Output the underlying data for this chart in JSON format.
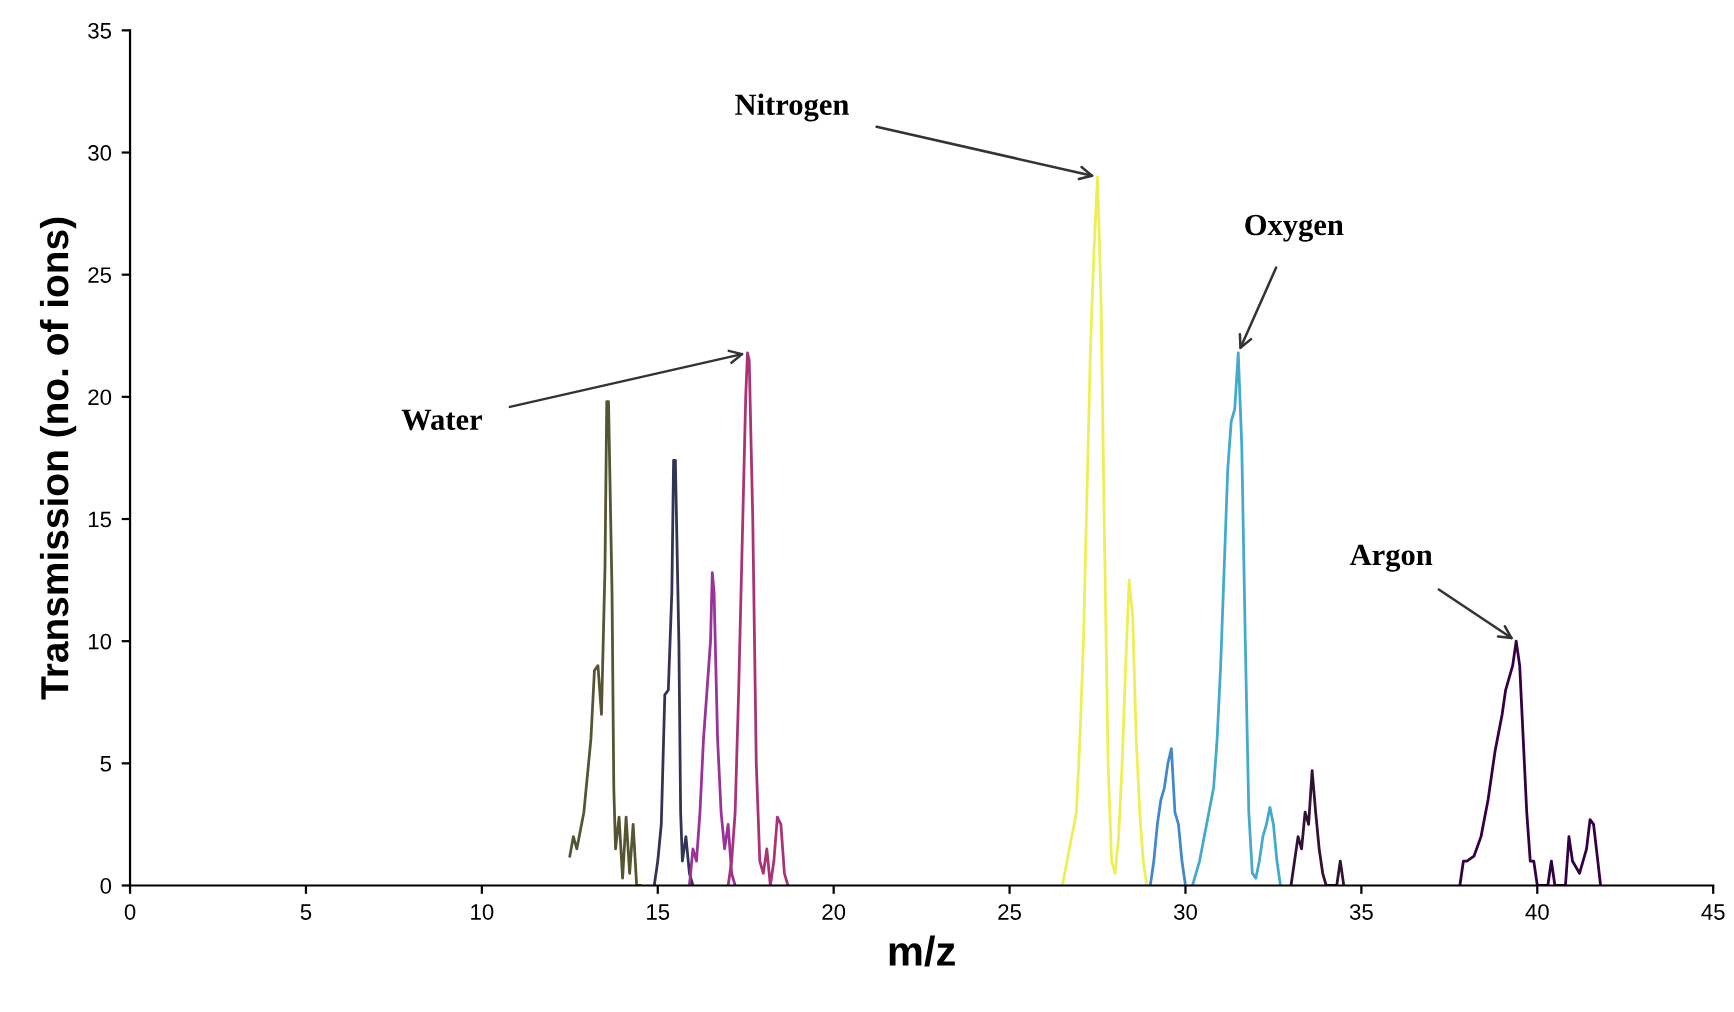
{
  "chart_data": {
    "type": "line",
    "xlabel": "m/z",
    "ylabel": "Transmission (no. of ions)",
    "xlim": [
      0,
      45
    ],
    "ylim": [
      0,
      35
    ],
    "xticks": [
      0,
      5,
      10,
      15,
      20,
      25,
      30,
      35,
      40,
      45
    ],
    "yticks": [
      0,
      5,
      10,
      15,
      20,
      25,
      30,
      35
    ],
    "grid": false,
    "legend": false,
    "marker": "none",
    "line_style": "solid",
    "annotations": [
      {
        "text": "Water",
        "x": 17.55,
        "y": 21.8
      },
      {
        "text": "Nitrogen",
        "x": 27.5,
        "y": 29
      },
      {
        "text": "Oxygen",
        "x": 31.5,
        "y": 21.8
      },
      {
        "text": "Argon",
        "x": 39.4,
        "y": 10
      }
    ],
    "series": [
      {
        "color": "#555533",
        "x": [
          12.5,
          12.6,
          12.7,
          12.9,
          13.1,
          13.2,
          13.3,
          13.4,
          13.5,
          13.55,
          13.6,
          13.7,
          13.75,
          13.8,
          13.9,
          14.0,
          14.1,
          14.2,
          14.3,
          14.4,
          14.5
        ],
        "values": [
          1.2,
          2,
          1.5,
          3,
          6,
          8.8,
          9,
          7,
          13,
          19.8,
          19.8,
          12,
          4,
          1.5,
          2.8,
          0.3,
          2.8,
          0.5,
          2.5,
          0,
          0
        ]
      },
      {
        "color": "#333355",
        "x": [
          14.9,
          15.0,
          15.1,
          15.2,
          15.3,
          15.4,
          15.45,
          15.5,
          15.6,
          15.65,
          15.7,
          15.8,
          15.9,
          16.0
        ],
        "values": [
          0,
          1,
          2.5,
          7.8,
          8,
          12,
          17.4,
          17.4,
          10,
          3,
          1,
          2,
          0.5,
          0
        ]
      },
      {
        "color": "#993399",
        "x": [
          15.9,
          16.0,
          16.1,
          16.2,
          16.3,
          16.4,
          16.5,
          16.55,
          16.6,
          16.7,
          16.8,
          16.9,
          17.0,
          17.1,
          17.2
        ],
        "values": [
          0,
          1.5,
          1,
          3,
          6,
          8,
          10,
          12.8,
          12,
          6,
          3,
          1.5,
          2.5,
          0.5,
          0
        ]
      },
      {
        "color": "#aa3377",
        "x": [
          17.0,
          17.1,
          17.2,
          17.3,
          17.4,
          17.5,
          17.55,
          17.6,
          17.7,
          17.8,
          17.9,
          18.0,
          18.1,
          18.2,
          18.3,
          18.4,
          18.5,
          18.6,
          18.7
        ],
        "values": [
          0,
          1,
          3,
          8,
          14,
          20,
          21.8,
          21.5,
          15,
          5,
          1,
          0.5,
          1.5,
          0,
          1,
          2.8,
          2.5,
          0.5,
          0
        ]
      },
      {
        "color": "#eeee55",
        "x": [
          26.5,
          26.7,
          26.9,
          27.0,
          27.1,
          27.2,
          27.3,
          27.4,
          27.5,
          27.6,
          27.7,
          27.8,
          27.9,
          28.0,
          28.1,
          28.2,
          28.3,
          28.4,
          28.5,
          28.6,
          28.7,
          28.8,
          28.9
        ],
        "values": [
          0,
          1.5,
          3,
          6,
          10,
          16,
          22,
          26,
          29,
          24,
          14,
          5,
          1,
          0.5,
          2,
          5,
          9,
          12.5,
          11,
          6,
          3,
          1,
          0
        ]
      },
      {
        "color": "#4488cc",
        "x": [
          29.0,
          29.1,
          29.2,
          29.3,
          29.4,
          29.5,
          29.6,
          29.7,
          29.8,
          29.9,
          30.0
        ],
        "values": [
          0,
          1,
          2.5,
          3.5,
          4,
          5,
          5.6,
          3,
          2.5,
          1,
          0
        ]
      },
      {
        "color": "#44aacc",
        "x": [
          30.2,
          30.4,
          30.6,
          30.8,
          30.9,
          31.0,
          31.1,
          31.2,
          31.3,
          31.4,
          31.5,
          31.6,
          31.7,
          31.8,
          31.9,
          32.0,
          32.1,
          32.2,
          32.3,
          32.4,
          32.5,
          32.6,
          32.7
        ],
        "values": [
          0,
          1,
          2.5,
          4,
          6,
          9,
          13,
          17,
          19,
          19.5,
          21.8,
          18,
          10,
          3,
          0.5,
          0.3,
          1,
          2,
          2.5,
          3.2,
          2.5,
          1,
          0
        ]
      },
      {
        "color": "#331133",
        "x": [
          33.0,
          33.1,
          33.2,
          33.3,
          33.4,
          33.5,
          33.6,
          33.7,
          33.8,
          33.9,
          34.0,
          34.3,
          34.4,
          34.5
        ],
        "values": [
          0,
          1,
          2,
          1.5,
          3,
          2.5,
          4.7,
          3,
          1.5,
          0.5,
          0,
          0,
          1,
          0
        ]
      },
      {
        "color": "#330044",
        "x": [
          37.8,
          37.9,
          38.0,
          38.2,
          38.4,
          38.6,
          38.8,
          39.0,
          39.1,
          39.2,
          39.3,
          39.4,
          39.5,
          39.6,
          39.7,
          39.8,
          39.9,
          40.0,
          40.3,
          40.4,
          40.5,
          40.8,
          40.9,
          41.0,
          41.2,
          41.4,
          41.5,
          41.6,
          41.8
        ],
        "values": [
          0,
          1,
          1,
          1.2,
          2,
          3.5,
          5.5,
          7,
          8,
          8.5,
          9,
          10,
          9,
          6,
          3,
          1,
          1,
          0,
          0,
          1,
          0,
          0,
          2,
          1,
          0.5,
          1.5,
          2.7,
          2.5,
          0
        ]
      }
    ]
  }
}
